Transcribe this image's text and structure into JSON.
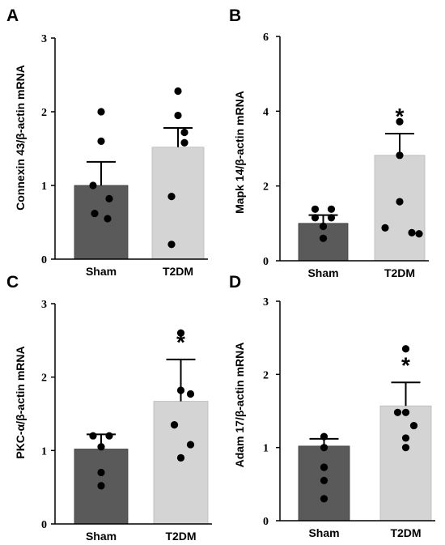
{
  "colors": {
    "sham": "#5a5a5a",
    "t2dm": "#d4d4d4",
    "axis": "#000000",
    "point": "#000000"
  },
  "chart_data": [
    {
      "panel": "A",
      "type": "bar",
      "ylabel": "Connexin 43/β-actin mRNA",
      "ylim": [
        0,
        3
      ],
      "yticks": [
        0,
        1,
        2,
        3
      ],
      "categories": [
        "Sham",
        "T2DM"
      ],
      "values": [
        1.0,
        1.52
      ],
      "errors": [
        0.32,
        0.26
      ],
      "points": [
        [
          2.0,
          1.6,
          1.0,
          0.82,
          0.62,
          0.55
        ],
        [
          2.28,
          1.95,
          1.72,
          1.58,
          0.85,
          0.2
        ]
      ],
      "significance": [
        "",
        ""
      ]
    },
    {
      "panel": "B",
      "type": "bar",
      "ylabel": "Mapk 14/β-actin mRNA",
      "ylim": [
        0,
        6
      ],
      "yticks": [
        0,
        2,
        4,
        6
      ],
      "categories": [
        "Sham",
        "T2DM"
      ],
      "values": [
        1.0,
        2.82
      ],
      "errors": [
        0.22,
        0.58
      ],
      "points": [
        [
          1.38,
          1.38,
          1.15,
          1.15,
          0.92,
          0.6
        ],
        [
          3.72,
          2.82,
          1.58,
          0.88,
          0.75,
          0.72
        ]
      ],
      "significance": [
        "",
        "*"
      ]
    },
    {
      "panel": "C",
      "type": "bar",
      "ylabel": "PKC-α/β-actin mRNA",
      "ylim": [
        0,
        3
      ],
      "yticks": [
        0,
        1,
        2,
        3
      ],
      "categories": [
        "Sham",
        "T2DM"
      ],
      "values": [
        1.02,
        1.67
      ],
      "errors": [
        0.2,
        0.57
      ],
      "points": [
        [
          1.2,
          1.2,
          1.05,
          0.7,
          0.52
        ],
        [
          2.6,
          1.82,
          1.77,
          1.35,
          1.08,
          0.9
        ]
      ],
      "significance": [
        "",
        "*"
      ]
    },
    {
      "panel": "D",
      "type": "bar",
      "ylabel": "Adam 17/β-actin mRNA",
      "ylim": [
        0,
        3
      ],
      "yticks": [
        0,
        1,
        2,
        3
      ],
      "categories": [
        "Sham",
        "T2DM"
      ],
      "values": [
        1.02,
        1.57
      ],
      "errors": [
        0.1,
        0.32
      ],
      "points": [
        [
          1.15,
          1.0,
          0.73,
          0.73,
          0.55,
          0.3
        ],
        [
          2.35,
          1.48,
          1.48,
          1.3,
          1.13,
          1.0
        ]
      ],
      "significance": [
        "",
        "*"
      ]
    }
  ]
}
